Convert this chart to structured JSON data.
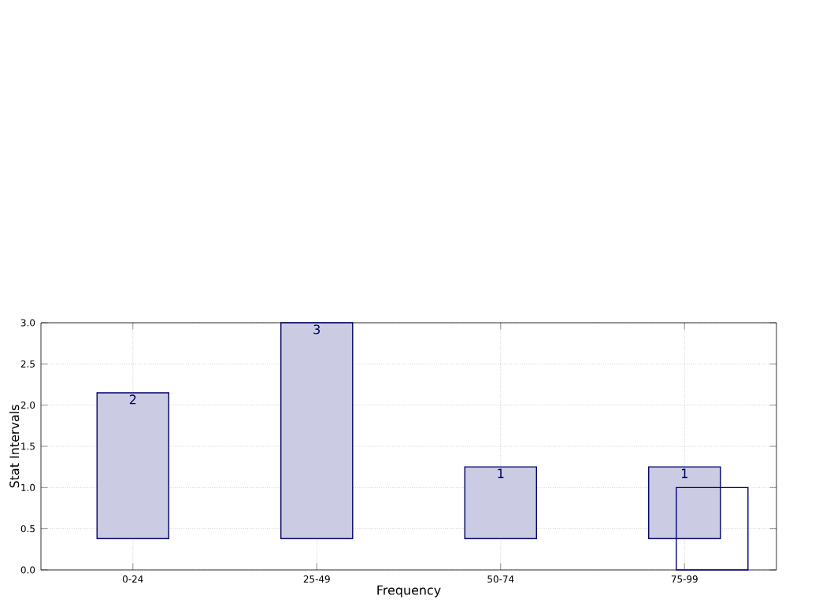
{
  "chart_data": {
    "type": "bar",
    "xlabel": "Frequency",
    "ylabel": "Stat Intervals",
    "categories": [
      "0-24",
      "25-49",
      "50-74",
      "75-99"
    ],
    "series": [
      {
        "color": "#cbcbe3",
        "base": [
          0.38,
          0.38,
          0.38,
          0.38
        ],
        "values": [
          1.77,
          2.62,
          0.87,
          0.87
        ],
        "value_labels": [
          "2",
          "3",
          "1",
          "1"
        ]
      },
      {
        "color": "#000080",
        "values": [
          null,
          null,
          null,
          1.0
        ]
      }
    ],
    "ylim": [
      0,
      3
    ],
    "yticks": [
      {
        "value": 0,
        "label": "0.0"
      },
      {
        "value": 0.5,
        "label": "0.5"
      },
      {
        "value": 1,
        "label": "1.0"
      },
      {
        "value": 1.5,
        "label": "1.5"
      },
      {
        "value": 2,
        "label": "2.0"
      },
      {
        "value": 2.5,
        "label": "2.5"
      },
      {
        "value": 3,
        "label": "3.0"
      }
    ],
    "grid": true
  }
}
